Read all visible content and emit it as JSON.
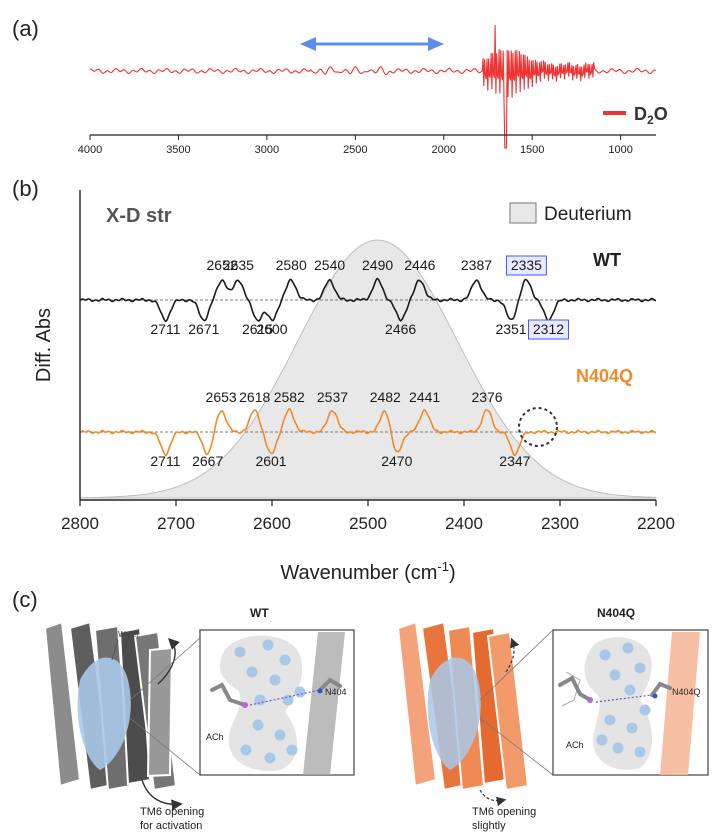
{
  "panels": {
    "a": {
      "label": "(a)",
      "legend": {
        "prefix": "D",
        "sub": "2",
        "suffix": "O",
        "color": "#ee3333"
      }
    },
    "b": {
      "label": "(b)",
      "title": "X-D str",
      "legend": "Deuterium",
      "ylabel": "Diff. Abs",
      "xlabel_main": "Wavenumber (cm",
      "xlabel_sup": "-1",
      "xlabel_close": ")",
      "series": {
        "wt": {
          "name": "WT",
          "color": "#1a1a1a"
        },
        "n404q": {
          "name": "N404Q",
          "color": "#f08a2a"
        }
      }
    },
    "c": {
      "label": "(c)",
      "wt": {
        "title": "WT",
        "water": "Water",
        "residue": "N404",
        "ligand": "ACh",
        "caption_line1": "TM6 opening",
        "caption_line2": "for activation"
      },
      "mutant": {
        "title": "N404Q",
        "residue": "N404Q",
        "ligand": "ACh",
        "caption_line1": "TM6 opening",
        "caption_line2": "slightly"
      }
    }
  },
  "chart_data": [
    {
      "panel": "a",
      "type": "line",
      "xlim": [
        4000,
        800
      ],
      "xticks": [
        4000,
        3500,
        3000,
        2500,
        2000,
        1500,
        1000
      ],
      "highlight_range": [
        2800,
        1950
      ],
      "series": [
        {
          "name": "D2O",
          "color": "#ee3333"
        }
      ]
    },
    {
      "panel": "b",
      "type": "line",
      "title": "X-D str",
      "xlabel": "Wavenumber (cm-1)",
      "ylabel": "Diff. Abs",
      "xlim": [
        2800,
        2200
      ],
      "xticks": [
        2800,
        2700,
        2600,
        2500,
        2400,
        2300,
        2200
      ],
      "series": [
        {
          "name": "WT",
          "color": "#1a1a1a",
          "peaks": [
            2652,
            2635,
            2580,
            2540,
            2490,
            2446,
            2387,
            2335
          ],
          "troughs": [
            2711,
            2671,
            2615,
            2600,
            2466,
            2351,
            2312
          ],
          "boxed": [
            2335,
            2312
          ]
        },
        {
          "name": "N404Q",
          "color": "#f08a2a",
          "peaks": [
            2653,
            2618,
            2582,
            2537,
            2482,
            2441,
            2376
          ],
          "troughs": [
            2711,
            2667,
            2601,
            2470,
            2347
          ]
        }
      ],
      "shaded": {
        "name": "Deuterium"
      }
    }
  ]
}
